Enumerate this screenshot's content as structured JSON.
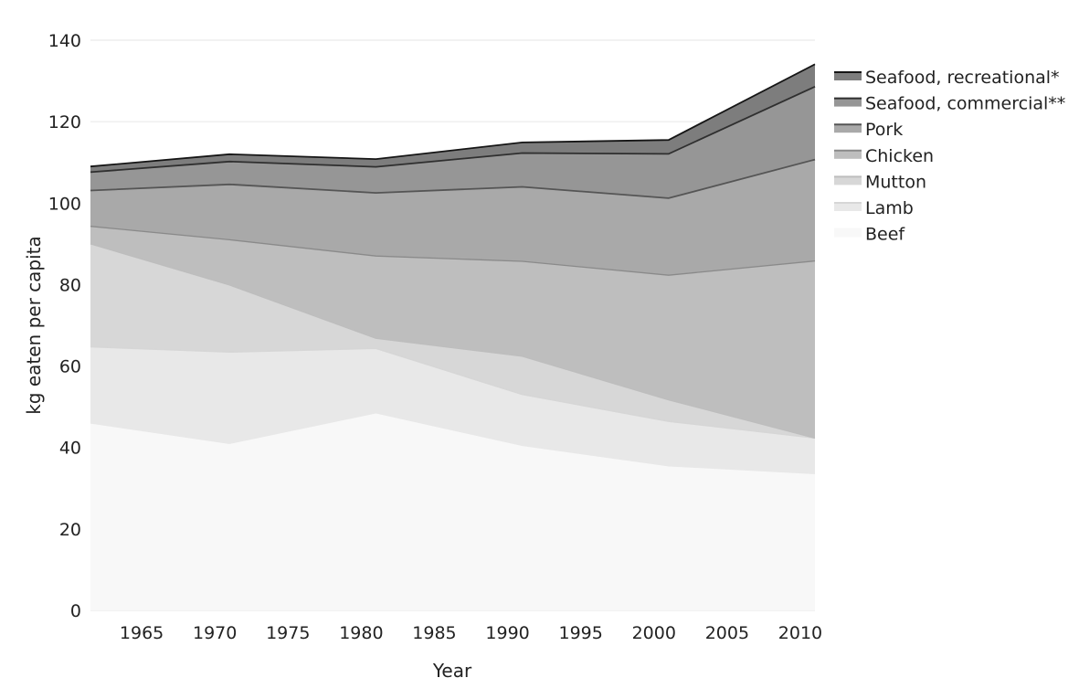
{
  "chart_data": {
    "type": "area",
    "stacked": true,
    "xlabel": "Year",
    "ylabel": "kg eaten per capita",
    "xlim": [
      1961.5,
      2011
    ],
    "ylim": [
      0,
      140
    ],
    "x_ticks": [
      1965,
      1970,
      1975,
      1980,
      1985,
      1990,
      1995,
      2000,
      2005,
      2010
    ],
    "y_ticks": [
      0,
      20,
      40,
      60,
      80,
      100,
      120,
      140
    ],
    "grid": "horizontal",
    "legend_position": "right",
    "x": [
      1961.5,
      1971,
      1981,
      1991,
      2001,
      2011
    ],
    "series": [
      {
        "name": "Beef",
        "color": "#f8f8f8",
        "line": "#f8f8f8",
        "values": [
          45.7,
          40.7,
          48.2,
          40.2,
          35.2,
          33.3
        ]
      },
      {
        "name": "Lamb",
        "color": "#e8e8e8",
        "line": "#d6d6d6",
        "values": [
          19.0,
          22.7,
          16.1,
          12.8,
          11.2,
          9.0
        ]
      },
      {
        "name": "Mutton",
        "color": "#d7d7d7",
        "line": "#bdbdbd",
        "values": [
          25.3,
          16.5,
          2.5,
          9.4,
          5.3,
          0.0
        ]
      },
      {
        "name": "Chicken",
        "color": "#bebebe",
        "line": "#8a8a8a",
        "values": [
          4.3,
          11.1,
          20.2,
          23.3,
          30.6,
          43.5
        ]
      },
      {
        "name": "Pork",
        "color": "#a9a9a9",
        "line": "#555555",
        "values": [
          8.8,
          13.6,
          15.5,
          18.3,
          18.9,
          24.9
        ]
      },
      {
        "name": "Seafood, commercial**",
        "color": "#969696",
        "line": "#2f2f2f",
        "values": [
          4.5,
          5.6,
          6.4,
          8.3,
          10.9,
          17.9
        ]
      },
      {
        "name": "Seafood, recreational*",
        "color": "#7d7d7d",
        "line": "#151515",
        "values": [
          1.4,
          1.8,
          1.9,
          2.6,
          3.4,
          5.5
        ]
      }
    ]
  }
}
